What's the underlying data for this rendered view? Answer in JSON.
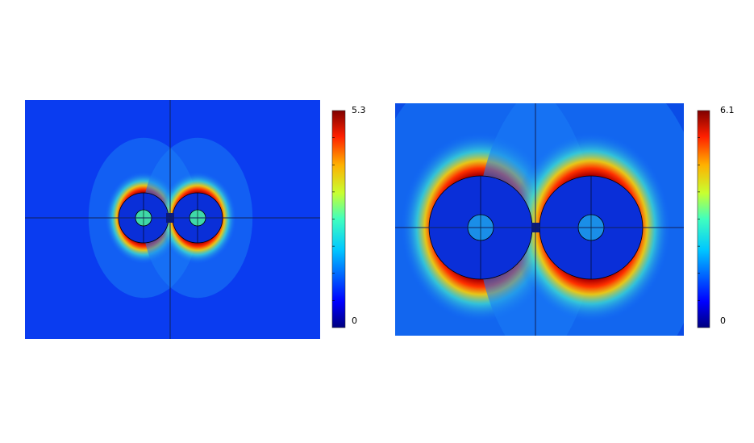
{
  "panels": [
    {
      "colorbar": {
        "max": 5.3,
        "min": 0
      }
    },
    {
      "colorbar": {
        "max": 6.1,
        "min": 0
      }
    }
  ]
}
